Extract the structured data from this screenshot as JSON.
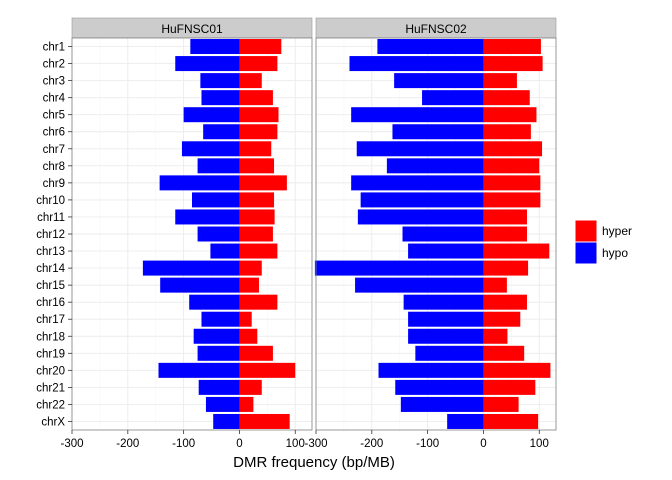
{
  "chart_data": {
    "type": "bar",
    "orientation": "horizontal",
    "xlabel": "DMR frequency (bp/MB)",
    "ylabel": "",
    "xlim": [
      -300,
      130
    ],
    "xticks": [
      -300,
      -200,
      -100,
      0,
      100
    ],
    "xtick_labels": [
      "-300",
      "-200",
      "-100",
      "0",
      "100"
    ],
    "categories": [
      "chr1",
      "chr2",
      "chr3",
      "chr4",
      "chr5",
      "chr6",
      "chr7",
      "chr8",
      "chr9",
      "chr10",
      "chr11",
      "chr12",
      "chr13",
      "chr14",
      "chr15",
      "chr16",
      "chr17",
      "chr18",
      "chr19",
      "chr20",
      "chr21",
      "chr22",
      "chrX"
    ],
    "legend": {
      "placement": "right",
      "entries": [
        {
          "name": "hyper",
          "color": "#ff0000"
        },
        {
          "name": "hypo",
          "color": "#0000ff"
        }
      ]
    },
    "grid": true,
    "panels": [
      {
        "title": "HuFNSC01",
        "series": [
          {
            "name": "hyper",
            "color": "#ff0000",
            "values": [
              75,
              68,
              40,
              60,
              70,
              68,
              57,
              62,
              85,
              62,
              63,
              60,
              68,
              40,
              35,
              68,
              22,
              32,
              60,
              100,
              40,
              25,
              90
            ]
          },
          {
            "name": "hypo",
            "color": "#0000ff",
            "values": [
              -88,
              -115,
              -70,
              -68,
              -100,
              -65,
              -103,
              -75,
              -143,
              -85,
              -115,
              -75,
              -52,
              -173,
              -142,
              -90,
              -68,
              -82,
              -75,
              -145,
              -73,
              -60,
              -47
            ]
          }
        ]
      },
      {
        "title": "HuFNSC02",
        "series": [
          {
            "name": "hyper",
            "color": "#ff0000",
            "values": [
              103,
              106,
              60,
              83,
              95,
              85,
              105,
              100,
              102,
              102,
              78,
              78,
              118,
              80,
              42,
              78,
              66,
              43,
              73,
              120,
              93,
              63,
              98
            ]
          },
          {
            "name": "hypo",
            "color": "#0000ff",
            "values": [
              -190,
              -240,
              -160,
              -110,
              -237,
              -163,
              -227,
              -173,
              -237,
              -220,
              -225,
              -145,
              -135,
              -302,
              -230,
              -143,
              -135,
              -135,
              -122,
              -188,
              -158,
              -148,
              -65
            ]
          }
        ]
      }
    ]
  }
}
